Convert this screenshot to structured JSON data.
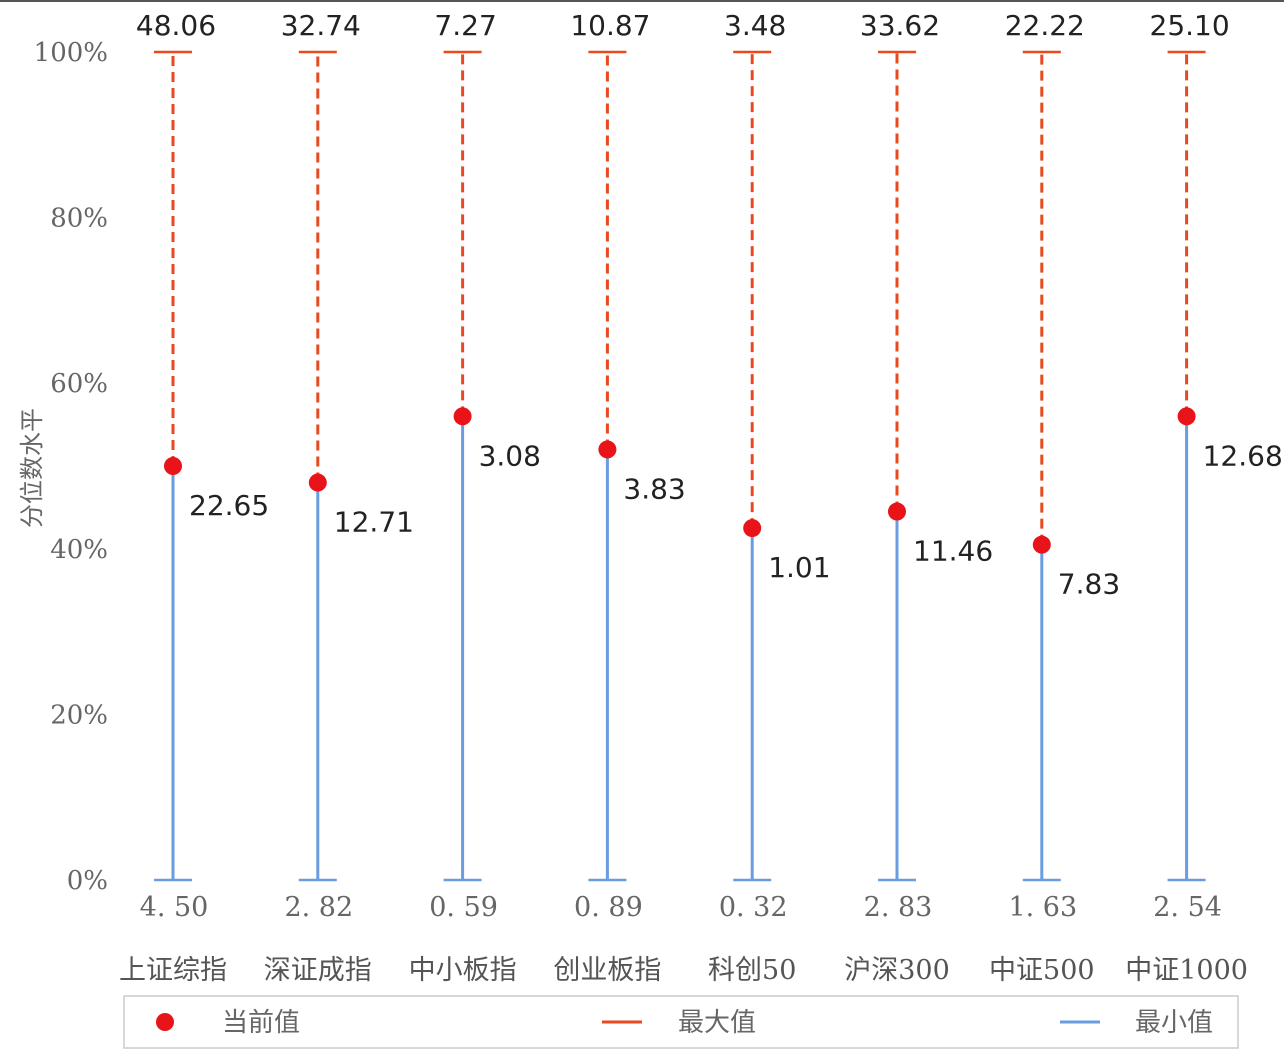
{
  "chart_data": {
    "type": "range-dot",
    "ylabel": "分位数水平",
    "ylim": [
      0,
      100
    ],
    "yticks": [
      "0%",
      "20%",
      "40%",
      "60%",
      "80%",
      "100%"
    ],
    "categories": [
      "上证综指",
      "深证成指",
      "中小板指",
      "创业板指",
      "科创50",
      "沪深300",
      "中证500",
      "中证1000"
    ],
    "series": [
      {
        "name": "当前值",
        "values": [
          22.65,
          12.71,
          3.08,
          3.83,
          1.01,
          11.46,
          7.83,
          12.68
        ],
        "labels": [
          "22.65",
          "12.71",
          "3.08",
          "3.83",
          "1.01",
          "11.46",
          "7.83",
          "12.68"
        ],
        "percentile": [
          50,
          48,
          56,
          52,
          42.5,
          44.5,
          40.5,
          56
        ]
      },
      {
        "name": "最大值",
        "values": [
          48.06,
          32.74,
          7.27,
          10.87,
          3.48,
          33.62,
          22.22,
          25.1
        ],
        "labels": [
          "48.06",
          "32.74",
          "7.27",
          "10.87",
          "3.48",
          "33.62",
          "22.22",
          "25.10"
        ],
        "percentile": [
          100,
          100,
          100,
          100,
          100,
          100,
          100,
          100
        ]
      },
      {
        "name": "最小值",
        "values": [
          4.5,
          2.82,
          0.59,
          0.89,
          0.32,
          2.83,
          1.63,
          2.54
        ],
        "labels": [
          "4. 50",
          "2. 82",
          "0. 59",
          "0. 89",
          "0. 32",
          "2. 83",
          "1. 63",
          "2. 54"
        ],
        "percentile": [
          0,
          0,
          0,
          0,
          0,
          0,
          0,
          0
        ]
      }
    ],
    "legend": {
      "position": "bottom",
      "items": [
        "当前值",
        "最大值",
        "最小值"
      ]
    },
    "colors": {
      "current": "#e8141a",
      "max": "#e8491d",
      "min": "#6a9ce0"
    }
  }
}
